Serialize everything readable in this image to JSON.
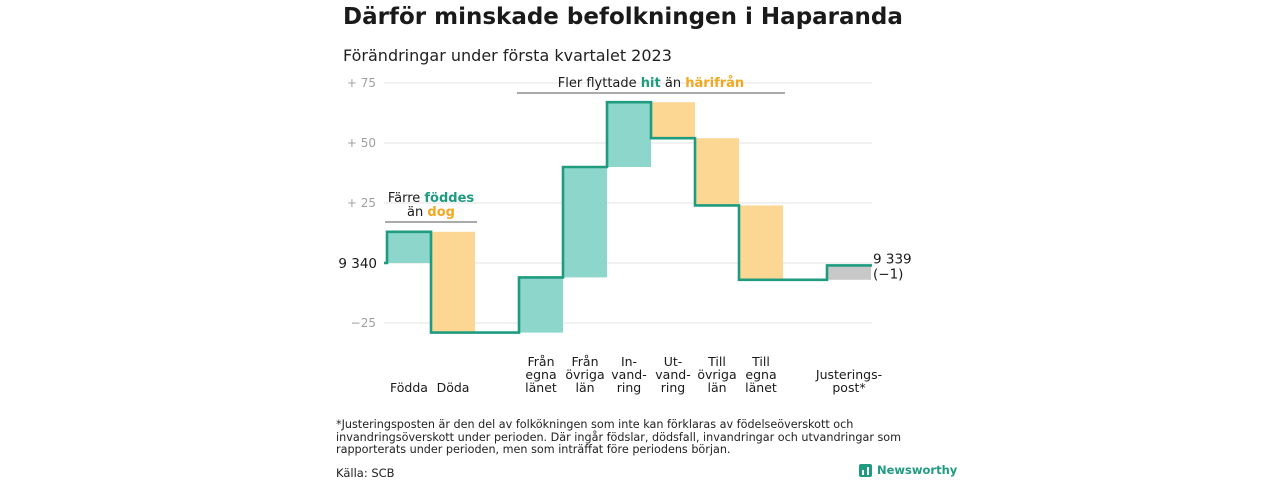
{
  "title": "Därför minskade befolkningen i Haparanda",
  "subtitle": "Förändringar under första kvartalet 2023",
  "chart_data": {
    "type": "waterfall",
    "start": {
      "label": "9 340",
      "value": 9340
    },
    "end": {
      "label": "9 339",
      "change_label": "(−1)",
      "value": 9339
    },
    "yticks": [
      {
        "value": 75,
        "label": "+ 75"
      },
      {
        "value": 50,
        "label": "+ 50"
      },
      {
        "value": 25,
        "label": "+ 25"
      },
      {
        "value": -25,
        "label": "−25"
      }
    ],
    "ylim": [
      -30,
      78
    ],
    "steps": [
      {
        "label": [
          "Födda"
        ],
        "change": 13,
        "kind": "in"
      },
      {
        "label": [
          "Döda"
        ],
        "change": -42,
        "kind": "out"
      },
      {
        "label": [
          "Från",
          "egna",
          "länet"
        ],
        "change": 23,
        "kind": "in"
      },
      {
        "label": [
          "Från",
          "övriga",
          "län"
        ],
        "change": 46,
        "kind": "in"
      },
      {
        "label": [
          "In-",
          "vand-",
          "ring"
        ],
        "change": 27,
        "kind": "in"
      },
      {
        "label": [
          "Ut-",
          "vand-",
          "ring"
        ],
        "change": -15,
        "kind": "out"
      },
      {
        "label": [
          "Till",
          "övriga",
          "län"
        ],
        "change": -28,
        "kind": "out"
      },
      {
        "label": [
          "Till",
          "egna",
          "länet"
        ],
        "change": -31,
        "kind": "out"
      },
      {
        "label": [
          "Justerings-",
          "post*"
        ],
        "change": 6,
        "kind": "adjust"
      }
    ],
    "annotations": [
      {
        "lines": [
          [
            {
              "text": "Färre ",
              "kind": "plain"
            },
            {
              "text": "föddes",
              "kind": "in"
            }
          ],
          [
            {
              "text": "än ",
              "kind": "plain"
            },
            {
              "text": "dog",
              "kind": "out"
            }
          ]
        ],
        "from_step": 0,
        "to_step": 1
      },
      {
        "lines": [
          [
            {
              "text": "Fler flyttade ",
              "kind": "plain"
            },
            {
              "text": "hit",
              "kind": "in"
            },
            {
              "text": " än ",
              "kind": "plain"
            },
            {
              "text": "härifrån",
              "kind": "out"
            }
          ]
        ],
        "from_step": 2,
        "to_step": 7
      }
    ],
    "colors": {
      "in_fill": "#8dd6cb",
      "out_fill": "#fbd793",
      "adjust_fill": "#c8c8c8",
      "line": "#1f9c80",
      "in_text": "#1f9c80",
      "out_text": "#f0a820",
      "grid": "#e3e3e3",
      "tick_text": "#a0a0a0"
    },
    "grid": true
  },
  "footnote": "*Justeringsposten är den del av folkökningen som inte kan förklaras av födelseöverskott och invandringsöverskott under perioden. Där ingår födslar, dödsfall, invandringar och utvandringar som rapporterats under perioden, men som inträffat före periodens början.",
  "source": "Källa: SCB",
  "brand": {
    "name": "Newsworthy",
    "icon": "bar-chart-icon"
  }
}
